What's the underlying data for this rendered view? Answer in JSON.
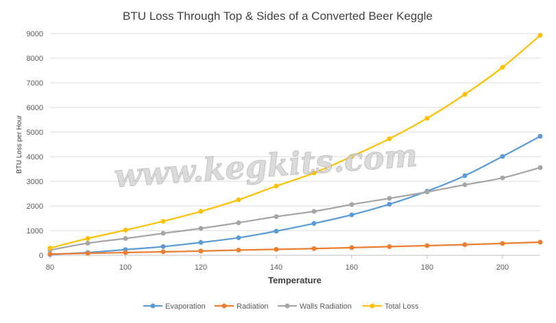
{
  "chart_data": {
    "type": "line",
    "title": "BTU Loss Through Top & Sides of a Converted Beer Keggle",
    "xlabel": "Temperature",
    "ylabel": "BTU Loss per Hour",
    "xlim": [
      80,
      210
    ],
    "ylim": [
      0,
      9000
    ],
    "xticks": [
      80,
      100,
      120,
      140,
      160,
      180,
      200
    ],
    "yticks": [
      0,
      1000,
      2000,
      3000,
      4000,
      5000,
      6000,
      7000,
      8000,
      9000
    ],
    "grid": "horizontal",
    "legend_position": "bottom",
    "x": [
      80,
      90,
      100,
      110,
      120,
      130,
      140,
      150,
      160,
      170,
      180,
      190,
      200,
      210
    ],
    "series": [
      {
        "name": "Evaporation",
        "color": "#5b9bd5",
        "values": [
          30,
          110,
          230,
          350,
          520,
          710,
          980,
          1290,
          1640,
          2070,
          2600,
          3230,
          4010,
          4830
        ]
      },
      {
        "name": "Radiation",
        "color": "#ed7d31",
        "values": [
          50,
          80,
          110,
          140,
          170,
          210,
          240,
          270,
          310,
          350,
          390,
          430,
          480,
          530
        ]
      },
      {
        "name": "Walls Radiation",
        "color": "#a5a5a5",
        "values": [
          210,
          490,
          680,
          890,
          1090,
          1320,
          1570,
          1780,
          2060,
          2310,
          2570,
          2860,
          3140,
          3560
        ]
      },
      {
        "name": "Total Loss",
        "color": "#ffc000",
        "values": [
          290,
          680,
          1020,
          1380,
          1780,
          2250,
          2810,
          3340,
          4010,
          4730,
          5560,
          6530,
          7630,
          8930
        ]
      }
    ]
  },
  "watermark": "www.kegkits.com"
}
